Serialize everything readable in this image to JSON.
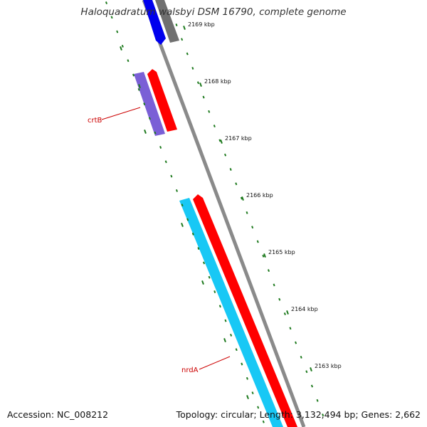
{
  "title": "Haloquadratum walsbyi DSM 16790, complete genome",
  "footer": {
    "accession": "Accession: NC_008212",
    "stats": "Topology: circular; Length: 3,132,494 bp; Genes: 2,662"
  },
  "gene_labels": [
    {
      "name": "crtB"
    },
    {
      "name": "nrdA"
    }
  ],
  "ticks": [
    {
      "label": "2169 kbp"
    },
    {
      "label": "2168 kbp"
    },
    {
      "label": "2167 kbp"
    },
    {
      "label": "2166 kbp"
    },
    {
      "label": "2165 kbp"
    },
    {
      "label": "2164 kbp"
    },
    {
      "label": "2163 kbp"
    }
  ],
  "colors": {
    "backbone": "#8a8a8a",
    "forward_cds": "#ff0000",
    "reverse_cds_blue": "#0000ee",
    "reverse_cds_violet": "#7a5fd6",
    "reverse_cds_cyan": "#18c8f5",
    "gray_feature": "#707070",
    "tick_green": "#1e7a1e",
    "gene_label": "#cc0000"
  }
}
